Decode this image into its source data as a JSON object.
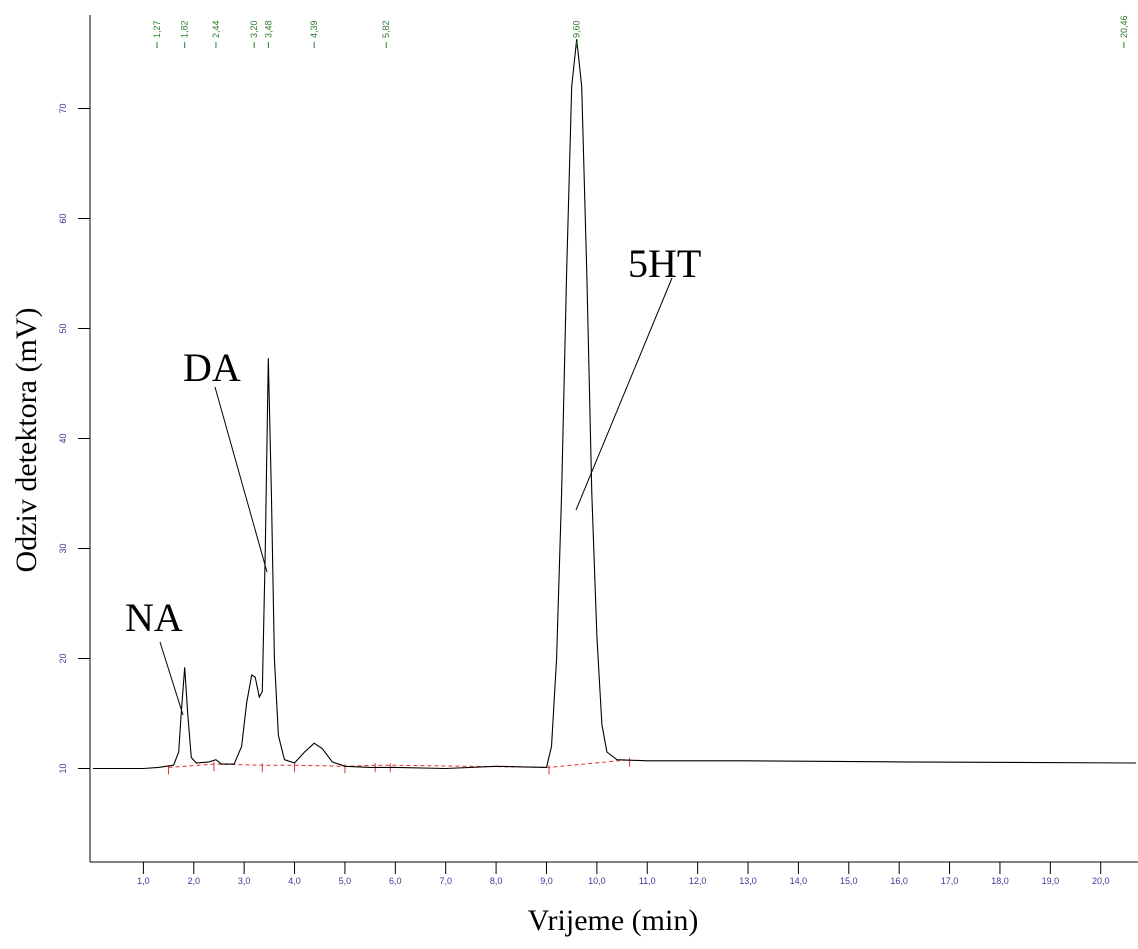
{
  "chart_data": {
    "type": "line",
    "x_label": "Vrijeme (min)",
    "y_label": "Odziv detektora (mV)",
    "xlim": [
      0,
      20.7
    ],
    "ylim": [
      1.5,
      78.5
    ],
    "xticks": [
      {
        "value": 1,
        "label": "1,0"
      },
      {
        "value": 2,
        "label": "2,0"
      },
      {
        "value": 3,
        "label": "3,0"
      },
      {
        "value": 4,
        "label": "4,0"
      },
      {
        "value": 5,
        "label": "5,0"
      },
      {
        "value": 6,
        "label": "6,0"
      },
      {
        "value": 7,
        "label": "7,0"
      },
      {
        "value": 8,
        "label": "8,0"
      },
      {
        "value": 9,
        "label": "9,0"
      },
      {
        "value": 10,
        "label": "10,0"
      },
      {
        "value": 11,
        "label": "11,0"
      },
      {
        "value": 12,
        "label": "12,0"
      },
      {
        "value": 13,
        "label": "13,0"
      },
      {
        "value": 14,
        "label": "14,0"
      },
      {
        "value": 15,
        "label": "15,0"
      },
      {
        "value": 16,
        "label": "16,0"
      },
      {
        "value": 17,
        "label": "17,0"
      },
      {
        "value": 18,
        "label": "18,0"
      },
      {
        "value": 19,
        "label": "19,0"
      },
      {
        "value": 20,
        "label": "20,0"
      }
    ],
    "yticks": [
      10,
      20,
      30,
      40,
      50,
      60,
      70
    ],
    "series": [
      {
        "color": "#000000",
        "x": [
          0,
          1.0,
          1.3,
          1.6,
          1.7,
          1.75,
          1.82,
          1.88,
          1.95,
          2.05,
          2.3,
          2.44,
          2.55,
          2.8,
          2.95,
          3.05,
          3.15,
          3.22,
          3.3,
          3.36,
          3.42,
          3.48,
          3.54,
          3.6,
          3.68,
          3.8,
          4.0,
          4.2,
          4.39,
          4.55,
          4.75,
          5.0,
          5.5,
          6.0,
          7.0,
          8.0,
          9.0,
          9.1,
          9.2,
          9.3,
          9.4,
          9.5,
          9.6,
          9.7,
          9.8,
          9.9,
          10.0,
          10.1,
          10.2,
          10.4,
          11,
          13,
          16,
          20.7
        ],
        "values": [
          10.0,
          10.0,
          10.1,
          10.3,
          11.5,
          15,
          19.2,
          15,
          11,
          10.5,
          10.6,
          10.8,
          10.4,
          10.4,
          12,
          16,
          18.5,
          18.3,
          16.5,
          17,
          30,
          47.3,
          35,
          20,
          13,
          10.8,
          10.5,
          11.5,
          12.3,
          11.8,
          10.6,
          10.2,
          10.1,
          10.1,
          10.0,
          10.2,
          10.1,
          12,
          20,
          35,
          55,
          72,
          76.3,
          72,
          55,
          35,
          22,
          14,
          11.5,
          10.8,
          10.7,
          10.7,
          10.6,
          10.5
        ]
      }
    ],
    "baseline": {
      "color": "#e03030",
      "x": [
        1.5,
        2.4,
        3.36,
        4.0,
        5.0,
        5.6,
        5.9,
        9.05,
        10.65
      ],
      "values": [
        10.1,
        10.4,
        10.3,
        10.3,
        10.2,
        10.3,
        10.3,
        10.1,
        10.8
      ]
    },
    "peaks": [
      {
        "time": 1.27,
        "label": "1,27"
      },
      {
        "time": 1.82,
        "label": "1,82"
      },
      {
        "time": 2.44,
        "label": "2,44"
      },
      {
        "time": 3.2,
        "label": "3,20"
      },
      {
        "time": 3.48,
        "label": "3,48"
      },
      {
        "time": 4.39,
        "label": "4,39"
      },
      {
        "time": 5.82,
        "label": "5,82"
      },
      {
        "time": 9.6,
        "label": "9,60"
      },
      {
        "time": 20.46,
        "label": "20,46"
      }
    ],
    "annotations": [
      {
        "text": "NA"
      },
      {
        "text": "DA"
      },
      {
        "text": "5HT"
      }
    ]
  }
}
